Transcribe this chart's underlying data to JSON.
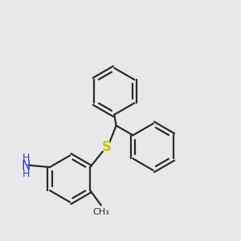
{
  "bg_color": "#e8e8e8",
  "bond_color": "#2a2a2a",
  "bond_width": 1.6,
  "dbo": 0.055,
  "S_color": "#c8c800",
  "N_color": "#3333dd",
  "text_color": "#2a2a2a",
  "figsize": [
    3.0,
    3.0
  ],
  "dpi": 100,
  "R": 0.6,
  "xlim": [
    -1.8,
    3.8
  ],
  "ylim": [
    -3.0,
    3.2
  ]
}
